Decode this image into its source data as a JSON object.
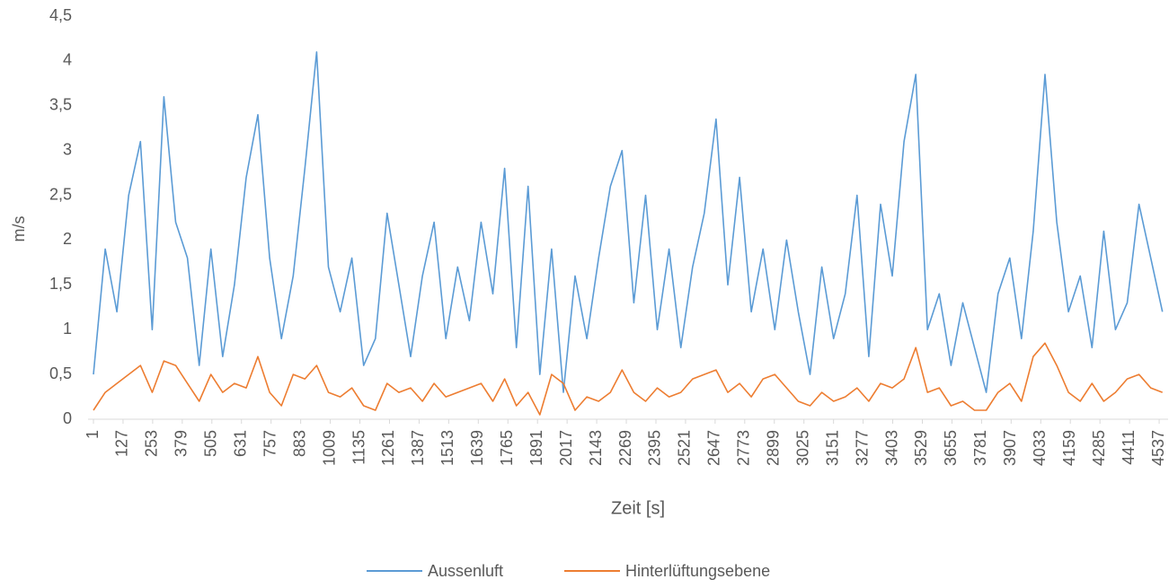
{
  "chart_data": {
    "type": "line",
    "x_label": "Zeit [s]",
    "y_label": "m/s",
    "x": [
      1,
      51,
      101,
      151,
      201,
      251,
      301,
      351,
      401,
      451,
      501,
      551,
      601,
      651,
      701,
      751,
      801,
      851,
      901,
      951,
      1001,
      1051,
      1101,
      1151,
      1201,
      1251,
      1301,
      1351,
      1401,
      1451,
      1501,
      1551,
      1601,
      1651,
      1701,
      1751,
      1801,
      1851,
      1901,
      1951,
      2001,
      2051,
      2101,
      2151,
      2201,
      2251,
      2301,
      2351,
      2401,
      2451,
      2501,
      2551,
      2601,
      2651,
      2701,
      2751,
      2801,
      2851,
      2901,
      2951,
      3001,
      3051,
      3101,
      3151,
      3201,
      3251,
      3301,
      3351,
      3401,
      3451,
      3501,
      3551,
      3601,
      3651,
      3701,
      3751,
      3801,
      3851,
      3901,
      3951,
      4001,
      4051,
      4101,
      4151,
      4201,
      4251,
      4301,
      4351,
      4401,
      4451,
      4501,
      4551
    ],
    "series": [
      {
        "name": "Aussenluft",
        "color": "#5b9bd5",
        "values": [
          0.5,
          1.9,
          1.2,
          2.5,
          3.1,
          1.0,
          3.6,
          2.2,
          1.8,
          0.6,
          1.9,
          0.7,
          1.5,
          2.7,
          3.4,
          1.8,
          0.9,
          1.6,
          2.8,
          4.1,
          1.7,
          1.2,
          1.8,
          0.6,
          0.9,
          2.3,
          1.5,
          0.7,
          1.6,
          2.2,
          0.9,
          1.7,
          1.1,
          2.2,
          1.4,
          2.8,
          0.8,
          2.6,
          0.5,
          1.9,
          0.3,
          1.6,
          0.9,
          1.8,
          2.6,
          3.0,
          1.3,
          2.5,
          1.0,
          1.9,
          0.8,
          1.7,
          2.3,
          3.35,
          1.5,
          2.7,
          1.2,
          1.9,
          1.0,
          2.0,
          1.2,
          0.5,
          1.7,
          0.9,
          1.4,
          2.5,
          0.7,
          2.4,
          1.6,
          3.1,
          3.85,
          1.0,
          1.4,
          0.6,
          1.3,
          0.8,
          0.3,
          1.4,
          1.8,
          0.9,
          2.1,
          3.85,
          2.2,
          1.2,
          1.6,
          0.8,
          2.1,
          1.0,
          1.3,
          2.4,
          1.8,
          1.2
        ]
      },
      {
        "name": "Hinterlüftungsebene",
        "color": "#ed7d31",
        "values": [
          0.1,
          0.3,
          0.4,
          0.5,
          0.6,
          0.3,
          0.65,
          0.6,
          0.4,
          0.2,
          0.5,
          0.3,
          0.4,
          0.35,
          0.7,
          0.3,
          0.15,
          0.5,
          0.45,
          0.6,
          0.3,
          0.25,
          0.35,
          0.15,
          0.1,
          0.4,
          0.3,
          0.35,
          0.2,
          0.4,
          0.25,
          0.3,
          0.35,
          0.4,
          0.2,
          0.45,
          0.15,
          0.3,
          0.05,
          0.5,
          0.4,
          0.1,
          0.25,
          0.2,
          0.3,
          0.55,
          0.3,
          0.2,
          0.35,
          0.25,
          0.3,
          0.45,
          0.5,
          0.55,
          0.3,
          0.4,
          0.25,
          0.45,
          0.5,
          0.35,
          0.2,
          0.15,
          0.3,
          0.2,
          0.25,
          0.35,
          0.2,
          0.4,
          0.35,
          0.45,
          0.8,
          0.3,
          0.35,
          0.15,
          0.2,
          0.1,
          0.1,
          0.3,
          0.4,
          0.2,
          0.7,
          0.85,
          0.6,
          0.3,
          0.2,
          0.4,
          0.2,
          0.3,
          0.45,
          0.5,
          0.35,
          0.3
        ]
      }
    ],
    "xlim": [
      1,
      4575
    ],
    "xticks": [
      1,
      127,
      253,
      379,
      505,
      631,
      757,
      883,
      1009,
      1135,
      1261,
      1387,
      1513,
      1639,
      1765,
      1891,
      2017,
      2143,
      2269,
      2395,
      2521,
      2647,
      2773,
      2899,
      3025,
      3151,
      3277,
      3403,
      3529,
      3655,
      3781,
      3907,
      4033,
      4159,
      4285,
      4411,
      4537
    ],
    "ylim": [
      0,
      4.5
    ],
    "yticks": [
      0,
      {
        "value": 0.5,
        "label": "0,5"
      },
      1,
      {
        "value": 1.5,
        "label": "1,5"
      },
      2,
      {
        "value": 2.5,
        "label": "2,5"
      },
      3,
      {
        "value": 3.5,
        "label": "3,5"
      },
      4,
      {
        "value": 4.5,
        "label": "4,5"
      }
    ],
    "grid": false,
    "legend": "bottom"
  }
}
